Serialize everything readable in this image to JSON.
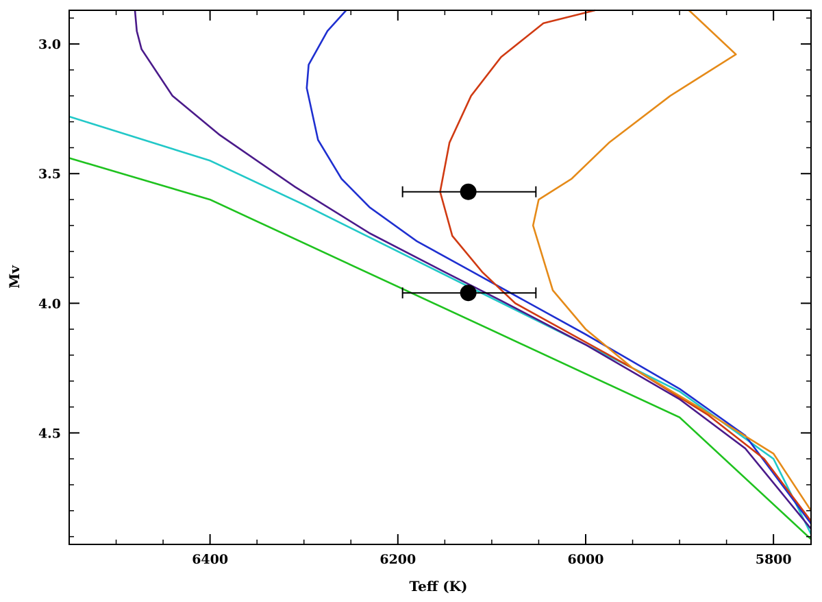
{
  "chart_data": {
    "type": "line",
    "title": "",
    "xlabel": "Teff (K)",
    "ylabel": "Mv",
    "xlim": [
      6550,
      5760
    ],
    "ylim": [
      2.87,
      4.93
    ],
    "x_reversed": true,
    "y_reversed": true,
    "grid": false,
    "x_ticks": [
      {
        "value": 6400,
        "label": "6400"
      },
      {
        "value": 6200,
        "label": "6200"
      },
      {
        "value": 6000,
        "label": "6000"
      },
      {
        "value": 5800,
        "label": "5800"
      }
    ],
    "x_minor_step": 50,
    "y_ticks": [
      {
        "value": 3.0,
        "label": "3.0"
      },
      {
        "value": 3.5,
        "label": "3.5"
      },
      {
        "value": 4.0,
        "label": "4.0"
      },
      {
        "value": 4.5,
        "label": "4.5"
      }
    ],
    "y_minor_step": 0.1,
    "series": [
      {
        "color": "#1fc21f",
        "points": [
          [
            6550,
            3.44
          ],
          [
            6400,
            3.6
          ],
          [
            6300,
            3.768
          ],
          [
            6200,
            3.936
          ],
          [
            6100,
            4.104
          ],
          [
            6000,
            4.272
          ],
          [
            5900,
            4.44
          ],
          [
            5760,
            4.91
          ]
        ]
      },
      {
        "color": "#22c8c8",
        "points": [
          [
            6550,
            3.28
          ],
          [
            6400,
            3.45
          ],
          [
            6300,
            3.62
          ],
          [
            6200,
            3.8
          ],
          [
            6100,
            3.98
          ],
          [
            6000,
            4.16
          ],
          [
            5900,
            4.34
          ],
          [
            5800,
            4.6
          ],
          [
            5760,
            4.89
          ]
        ]
      },
      {
        "color": "#4a1a8a",
        "points": [
          [
            6480,
            2.87
          ],
          [
            6478,
            2.95
          ],
          [
            6473,
            3.02
          ],
          [
            6440,
            3.2
          ],
          [
            6390,
            3.35
          ],
          [
            6310,
            3.55
          ],
          [
            6230,
            3.73
          ],
          [
            6150,
            3.88
          ],
          [
            6090,
            3.99
          ],
          [
            6000,
            4.16
          ],
          [
            5900,
            4.37
          ],
          [
            5830,
            4.56
          ],
          [
            5760,
            4.87
          ]
        ]
      },
      {
        "color": "#1e2fd0",
        "points": [
          [
            6255,
            2.87
          ],
          [
            6275,
            2.95
          ],
          [
            6295,
            3.08
          ],
          [
            6297,
            3.17
          ],
          [
            6285,
            3.37
          ],
          [
            6260,
            3.52
          ],
          [
            6230,
            3.63
          ],
          [
            6180,
            3.76
          ],
          [
            6120,
            3.88
          ],
          [
            6070,
            3.98
          ],
          [
            6000,
            4.12
          ],
          [
            5900,
            4.33
          ],
          [
            5830,
            4.51
          ],
          [
            5760,
            4.85
          ]
        ]
      },
      {
        "color": "#d03a12",
        "points": [
          [
            5990,
            2.87
          ],
          [
            6045,
            2.92
          ],
          [
            6090,
            3.05
          ],
          [
            6122,
            3.2
          ],
          [
            6145,
            3.38
          ],
          [
            6155,
            3.57
          ],
          [
            6142,
            3.74
          ],
          [
            6110,
            3.88
          ],
          [
            6075,
            4.0
          ],
          [
            6025,
            4.1
          ],
          [
            5950,
            4.25
          ],
          [
            5870,
            4.43
          ],
          [
            5810,
            4.6
          ],
          [
            5760,
            4.84
          ]
        ]
      },
      {
        "color": "#e58a18",
        "points": [
          [
            5890,
            2.87
          ],
          [
            5840,
            3.04
          ],
          [
            5910,
            3.2
          ],
          [
            5975,
            3.38
          ],
          [
            6015,
            3.52
          ],
          [
            6050,
            3.6
          ],
          [
            6056,
            3.7
          ],
          [
            6035,
            3.95
          ],
          [
            6000,
            4.1
          ],
          [
            5950,
            4.25
          ],
          [
            5880,
            4.4
          ],
          [
            5800,
            4.58
          ],
          [
            5760,
            4.8
          ]
        ]
      }
    ],
    "points": [
      {
        "x": 6125,
        "y": 3.57,
        "xerr": [
          6195,
          6053
        ]
      },
      {
        "x": 6125,
        "y": 3.96,
        "xerr": [
          6195,
          6053
        ]
      }
    ]
  }
}
